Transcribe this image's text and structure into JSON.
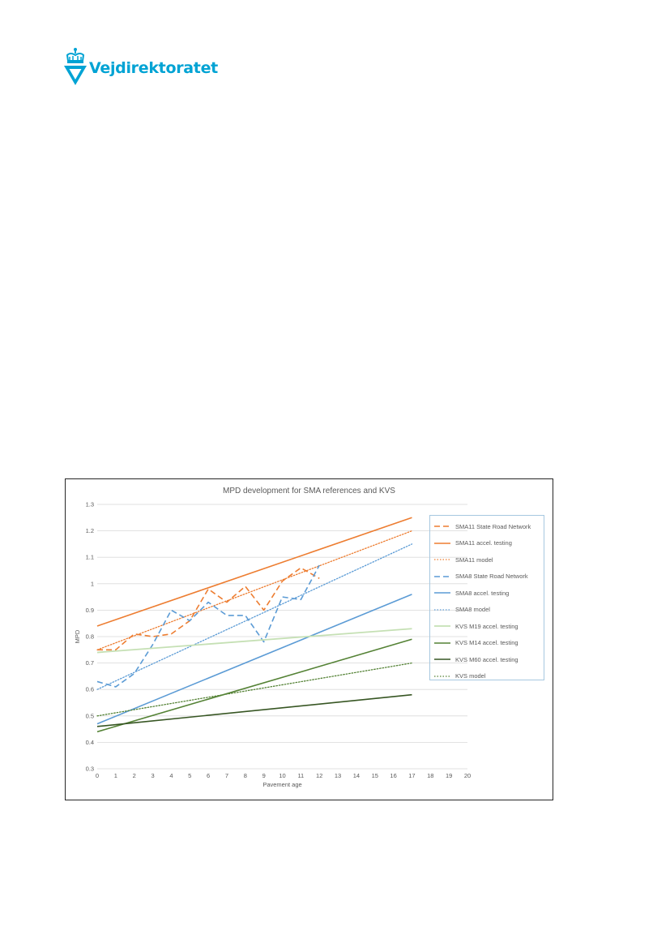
{
  "header": {
    "logo_text": "Vejdirektoratet",
    "brand_color": "#00a3d4"
  },
  "chart_data": {
    "type": "line",
    "title": "MPD development for SMA references and KVS",
    "xlabel": "Pavement age",
    "ylabel": "MPD",
    "xlim": [
      0,
      20
    ],
    "ylim": [
      0.3,
      1.3
    ],
    "x_ticks": [
      "0",
      "1",
      "2",
      "3",
      "4",
      "5",
      "6",
      "7",
      "8",
      "9",
      "10",
      "11",
      "12",
      "13",
      "14",
      "15",
      "16",
      "17",
      "18",
      "19",
      "20"
    ],
    "y_ticks": [
      "0.3",
      "0.4",
      "0.5",
      "0.6",
      "0.7",
      "0.8",
      "0.9",
      "1",
      "1.1",
      "1.2",
      "1.3"
    ],
    "grid": "horizontal",
    "legend_position": "right",
    "series": [
      {
        "name": "SMA11 State Road Network",
        "color": "#ed7d31",
        "dash": "dashed",
        "width": 1.6,
        "x": [
          0,
          1,
          2,
          3,
          4,
          5,
          6,
          7,
          8,
          9,
          10,
          11,
          12
        ],
        "y": [
          0.75,
          0.75,
          0.81,
          0.8,
          0.81,
          0.86,
          0.98,
          0.93,
          0.99,
          0.9,
          1.01,
          1.06,
          1.02
        ]
      },
      {
        "name": "SMA11 accel. testing",
        "color": "#ed7d31",
        "dash": "solid",
        "width": 1.6,
        "x": [
          0,
          17
        ],
        "y": [
          0.84,
          1.25
        ]
      },
      {
        "name": "SMA11 model",
        "color": "#ed7d31",
        "dash": "dotted",
        "width": 1.3,
        "x": [
          0,
          17
        ],
        "y": [
          0.75,
          1.2
        ]
      },
      {
        "name": "SMA8 State Road Network",
        "color": "#5b9bd5",
        "dash": "dashed",
        "width": 1.6,
        "x": [
          0,
          1,
          2,
          3,
          4,
          5,
          6,
          7,
          8,
          9,
          10,
          11,
          12
        ],
        "y": [
          0.63,
          0.61,
          0.66,
          0.77,
          0.9,
          0.86,
          0.93,
          0.88,
          0.88,
          0.78,
          0.95,
          0.94,
          1.07
        ]
      },
      {
        "name": "SMA8 accel. testing",
        "color": "#5b9bd5",
        "dash": "solid",
        "width": 1.6,
        "x": [
          0,
          17
        ],
        "y": [
          0.47,
          0.96
        ]
      },
      {
        "name": "SMA8 model",
        "color": "#5b9bd5",
        "dash": "dotted",
        "width": 1.3,
        "x": [
          0,
          17
        ],
        "y": [
          0.6,
          1.15
        ]
      },
      {
        "name": "KVS M19 accel. testing",
        "color": "#c5e0b4",
        "dash": "solid",
        "width": 1.8,
        "x": [
          0,
          17
        ],
        "y": [
          0.74,
          0.83
        ]
      },
      {
        "name": "KVS M14 accel. testing",
        "color": "#548235",
        "dash": "solid",
        "width": 1.6,
        "x": [
          0,
          17
        ],
        "y": [
          0.44,
          0.79
        ]
      },
      {
        "name": "KVS M60 accel. testing",
        "color": "#375623",
        "dash": "solid",
        "width": 1.6,
        "x": [
          0,
          17
        ],
        "y": [
          0.46,
          0.58
        ]
      },
      {
        "name": "KVS model",
        "color": "#548235",
        "dash": "dotted",
        "width": 1.3,
        "x": [
          0,
          17
        ],
        "y": [
          0.5,
          0.7
        ]
      }
    ]
  }
}
